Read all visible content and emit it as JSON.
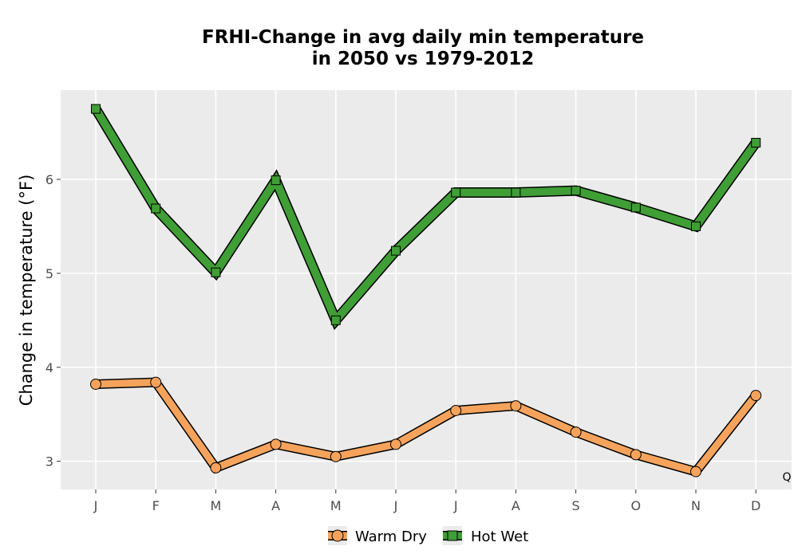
{
  "chart_data": {
    "type": "line",
    "title_lines": [
      "FRHI-Change in avg daily min temperature",
      "in 2050 vs 1979-2012"
    ],
    "xlabel": "",
    "ylabel": "Change in temperature (°F)",
    "categories": [
      "J",
      "F",
      "M",
      "A",
      "M",
      "J",
      "J",
      "A",
      "S",
      "O",
      "N",
      "D"
    ],
    "ylim": [
      2.7,
      6.95
    ],
    "yticks": [
      3,
      4,
      5,
      6
    ],
    "grid": true,
    "legend_position": "bottom",
    "corner_label": "Q",
    "series": [
      {
        "name": "Warm Dry",
        "marker": "circle",
        "color": "#F5A35C",
        "values": [
          3.82,
          3.84,
          2.93,
          3.18,
          3.05,
          3.18,
          3.54,
          3.59,
          3.31,
          3.07,
          2.89,
          3.7
        ]
      },
      {
        "name": "Hot Wet",
        "marker": "square",
        "color": "#3F9E35",
        "values": [
          6.75,
          5.69,
          5.01,
          5.99,
          4.5,
          5.24,
          5.86,
          5.86,
          5.88,
          5.7,
          5.5,
          6.39
        ]
      }
    ]
  }
}
